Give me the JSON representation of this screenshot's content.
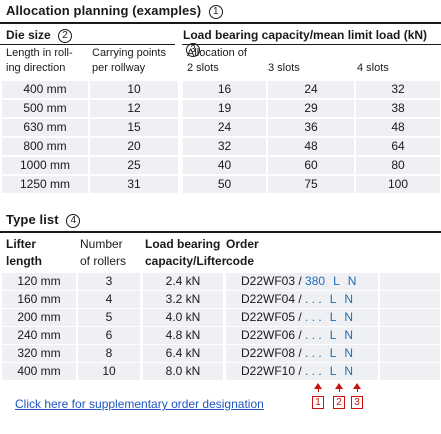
{
  "allocation": {
    "title": "Allocation planning (examples)",
    "title_marker": "1",
    "die_size_label": "Die size",
    "die_size_marker": "2",
    "load_label": "Load bearing capacity/mean limit load (kN)",
    "load_marker": "3",
    "col_length": "Length in roll-\ning direction",
    "col_points": "Carrying points\nper rollway",
    "col_alloc": "Allocation of\n2 slots",
    "col_3slots": "3 slots",
    "col_4slots": "4 slots",
    "rows": [
      {
        "length": "400 mm",
        "points": "10",
        "s2": "16",
        "s3": "24",
        "s4": "32"
      },
      {
        "length": "500 mm",
        "points": "12",
        "s2": "19",
        "s3": "29",
        "s4": "38"
      },
      {
        "length": "630 mm",
        "points": "15",
        "s2": "24",
        "s3": "36",
        "s4": "48"
      },
      {
        "length": "800 mm",
        "points": "20",
        "s2": "32",
        "s3": "48",
        "s4": "64"
      },
      {
        "length": "1000 mm",
        "points": "25",
        "s2": "40",
        "s3": "60",
        "s4": "80"
      },
      {
        "length": "1250 mm",
        "points": "31",
        "s2": "50",
        "s3": "75",
        "s4": "100"
      }
    ]
  },
  "typelist": {
    "title": "Type list",
    "title_marker": "4",
    "col_lifter": "Lifter\nlength",
    "col_rollers": "Number\nof rollers",
    "col_load": "Load bearing\ncapacity/Lifter",
    "col_order": "Order\ncode",
    "rows": [
      {
        "length": "120 mm",
        "rollers": "3",
        "load": "2.4 kN",
        "code": "D22WF03 / ",
        "code_mid": "380",
        "code_l": "L",
        "code_n": "N"
      },
      {
        "length": "160 mm",
        "rollers": "4",
        "load": "3.2 kN",
        "code": "D22WF04 / ",
        "code_mid": ". . .",
        "code_l": "L",
        "code_n": "N"
      },
      {
        "length": "200 mm",
        "rollers": "5",
        "load": "4.0 kN",
        "code": "D22WF05 / ",
        "code_mid": ". . .",
        "code_l": "L",
        "code_n": "N"
      },
      {
        "length": "240 mm",
        "rollers": "6",
        "load": "4.8 kN",
        "code": "D22WF06 / ",
        "code_mid": ". . .",
        "code_l": "L",
        "code_n": "N"
      },
      {
        "length": "320 mm",
        "rollers": "8",
        "load": "6.4 kN",
        "code": "D22WF08 / ",
        "code_mid": ". . .",
        "code_l": "L",
        "code_n": "N"
      },
      {
        "length": "400 mm",
        "rollers": "10",
        "load": "8.0 kN",
        "code": "D22WF10 / ",
        "code_mid": ". . .",
        "code_l": "L",
        "code_n": "N"
      }
    ],
    "markers": [
      "1",
      "2",
      "3"
    ]
  },
  "link_text": "Click here for supplementary order designation",
  "colors": {
    "cell_bg": "#eef0f3",
    "accent_blue": "#1f6db5",
    "marker_red": "#cc1111",
    "link": "#1f56c2"
  }
}
